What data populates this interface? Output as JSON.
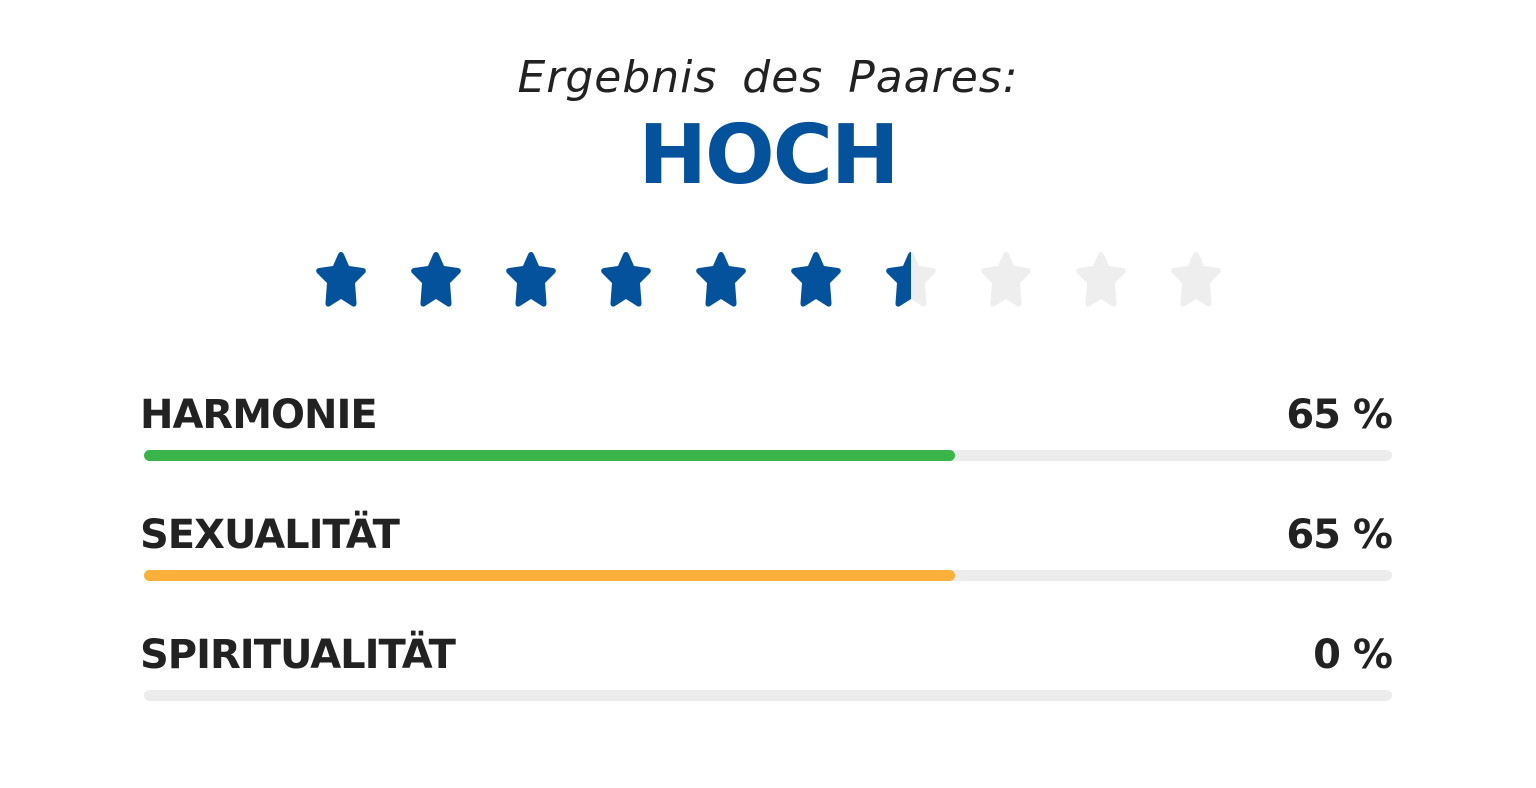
{
  "header": {
    "subtitle": "Ergebnis des Paares:",
    "title": "HOCH"
  },
  "rating": {
    "value": 6.5,
    "max": 10,
    "filled_color": "#04519c",
    "empty_color": "#eeeeee",
    "icon": "star-icon"
  },
  "categories": [
    {
      "label": "HARMONIE",
      "percent_text": "65 %",
      "percent": 65,
      "color": "#39b54a"
    },
    {
      "label": "SEXUALITÄT",
      "percent_text": "65 %",
      "percent": 65,
      "color": "#fbb03b"
    },
    {
      "label": "SPIRITUALITÄT",
      "percent_text": "0 %",
      "percent": 0,
      "color": "#04519c"
    }
  ]
}
